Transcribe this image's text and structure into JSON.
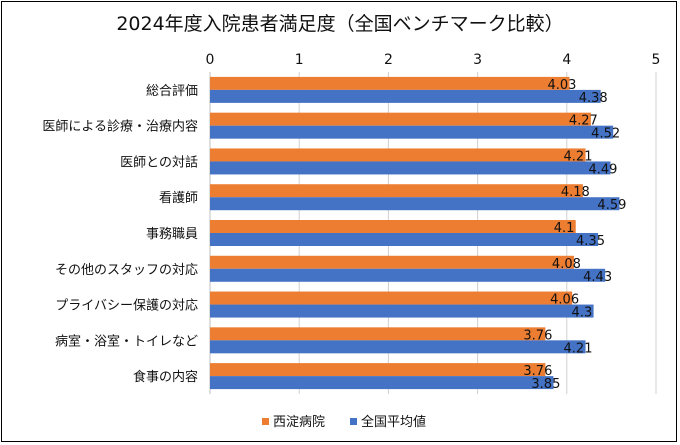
{
  "chart_data": {
    "type": "bar",
    "orientation": "horizontal",
    "title": "2024年度入院患者満足度（全国ベンチマーク比較）",
    "categories": [
      "総合評価",
      "医師による診療・治療内容",
      "医師との対話",
      "看護師",
      "事務職員",
      "その他のスタッフの対応",
      "プライバシー保護の対応",
      "病室・浴室・トイレなど",
      "食事の内容"
    ],
    "series": [
      {
        "name": "西淀病院",
        "color": "#ED7D31",
        "values": [
          4.03,
          4.27,
          4.21,
          4.18,
          4.1,
          4.08,
          4.06,
          3.76,
          3.76
        ]
      },
      {
        "name": "全国平均値",
        "color": "#4472C4",
        "values": [
          4.38,
          4.52,
          4.49,
          4.59,
          4.35,
          4.43,
          4.3,
          4.21,
          3.85
        ]
      }
    ],
    "xlim": [
      0,
      5
    ],
    "xticks": [
      "0",
      "1",
      "2",
      "3",
      "4",
      "5"
    ],
    "xaxis_position": "top",
    "gridlines": true,
    "legend_position": "bottom"
  }
}
